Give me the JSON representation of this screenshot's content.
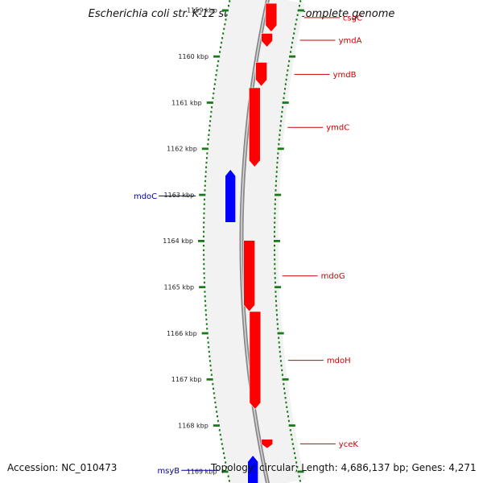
{
  "header": {
    "title": "Escherichia coli str. K-12 substr. DH10B, complete genome"
  },
  "footer": {
    "accession": "Accession: NC_010473",
    "summary": "Topology: circular; Length: 4,686,137 bp; Genes: 4,271"
  },
  "colors": {
    "forward_gene": "#ff0000",
    "reverse_gene": "#0000ff",
    "forward_label": "#cc0000",
    "reverse_label": "#0000aa",
    "backbone": "#888888",
    "tick": "#1a7a1a",
    "cog_grey": "#c4c4c4",
    "cog_lavender": "#7b6fd6",
    "cog_slate": "#4a4090",
    "cog_olive": "#6b8a2a"
  },
  "ruler": {
    "unit": "kbp",
    "ticks": [
      {
        "label": "1159 kbp",
        "value": 1159
      },
      {
        "label": "1160 kbp",
        "value": 1160
      },
      {
        "label": "1161 kbp",
        "value": 1161
      },
      {
        "label": "1162 kbp",
        "value": 1162
      },
      {
        "label": "1163 kbp",
        "value": 1163
      },
      {
        "label": "1164 kbp",
        "value": 1164
      },
      {
        "label": "1165 kbp",
        "value": 1165
      },
      {
        "label": "1166 kbp",
        "value": 1166
      },
      {
        "label": "1167 kbp",
        "value": 1167
      },
      {
        "label": "1168 kbp",
        "value": 1168
      },
      {
        "label": "1169 kbp",
        "value": 1169
      }
    ]
  },
  "genes": [
    {
      "name": "csgC",
      "strand": "forward",
      "start": 1158.85,
      "end": 1159.47,
      "labeled": true
    },
    {
      "name": "ymdA",
      "strand": "forward",
      "start": 1159.5,
      "end": 1159.8,
      "labeled": true
    },
    {
      "name": "ymdB",
      "strand": "forward",
      "start": 1160.13,
      "end": 1160.65,
      "labeled": true
    },
    {
      "name": "ymdC",
      "strand": "forward",
      "start": 1160.68,
      "end": 1162.4,
      "labeled": true
    },
    {
      "name": "mdoC",
      "strand": "reverse",
      "start": 1162.45,
      "end": 1163.6,
      "labeled": true
    },
    {
      "name": "mdoG",
      "strand": "forward",
      "start": 1163.99,
      "end": 1165.53,
      "labeled": true
    },
    {
      "name": "mdoH",
      "strand": "forward",
      "start": 1165.53,
      "end": 1167.65,
      "labeled": true
    },
    {
      "name": "yceK",
      "strand": "forward",
      "start": 1168.3,
      "end": 1168.5,
      "labeled": true
    },
    {
      "name": "msyB",
      "strand": "reverse",
      "start": 1168.65,
      "end": 1169.3,
      "labeled": true
    }
  ],
  "cog_bands": [
    {
      "start": 1160.13,
      "end": 1160.65,
      "color": "#c4c4c4"
    },
    {
      "start": 1160.65,
      "end": 1162.4,
      "color": "#7b6fd6"
    },
    {
      "start": 1163.99,
      "end": 1165.53,
      "color": "#4a4090"
    },
    {
      "start": 1165.53,
      "end": 1167.65,
      "color": "#6b8a2a"
    },
    {
      "start": 1168.3,
      "end": 1168.5,
      "color": "#c4c4c4"
    }
  ]
}
